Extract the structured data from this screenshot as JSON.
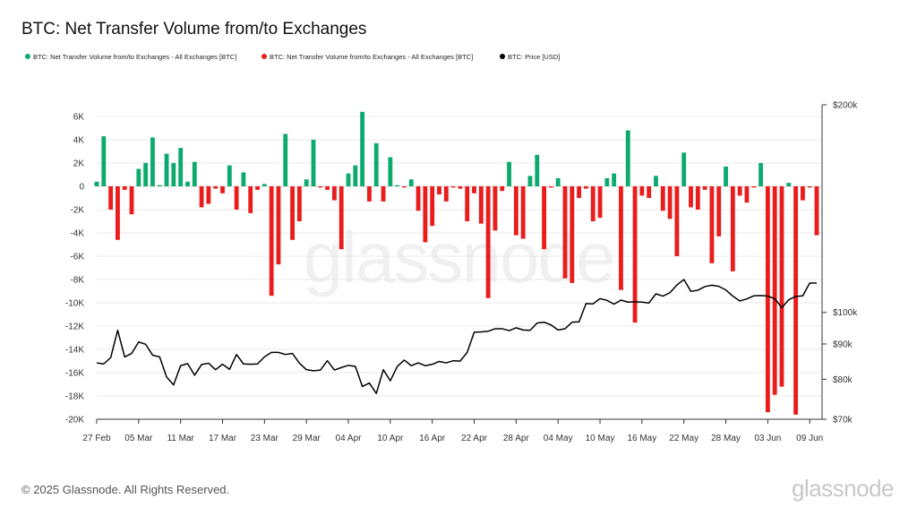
{
  "title": "BTC: Net Transfer Volume from/to Exchanges",
  "legend": [
    {
      "label": "BTC: Net Transfer Volume from/to Exchanges - All Exchanges [BTC]",
      "color": "#0daa6f"
    },
    {
      "label": "BTC: Net Transfer Volume from/to Exchanges - All Exchanges [BTC]",
      "color": "#ea1c1c"
    },
    {
      "label": "BTC: Price [USD]",
      "color": "#000000"
    }
  ],
  "watermark": "glassnode",
  "footer": {
    "copyright": "© 2025 Glassnode. All Rights Reserved.",
    "logo": "glassnode"
  },
  "chart_data": {
    "type": "bar",
    "left_axis": {
      "ticks": [
        6000,
        4000,
        2000,
        0,
        -2000,
        -4000,
        -6000,
        -8000,
        -10000,
        -12000,
        -14000,
        -16000,
        -18000,
        -20000
      ],
      "tick_labels": [
        "6K",
        "4K",
        "2K",
        "0",
        "-2K",
        "-4K",
        "-6K",
        "-8K",
        "-10K",
        "-12K",
        "-14K",
        "-16K",
        "-18K",
        "-20K"
      ],
      "range": [
        -20000,
        6000
      ]
    },
    "right_axis": {
      "ticks": [
        200000,
        100000,
        90000,
        80000,
        70000
      ],
      "tick_labels": [
        "$200k",
        "$100k",
        "$90k",
        "$80k",
        "$70k"
      ],
      "range": [
        70000,
        200000
      ],
      "scale": "log"
    },
    "x_axis": {
      "start": "2025-02-27",
      "end": "2025-06-10",
      "tick_dates": [
        "2025-02-27",
        "2025-03-05",
        "2025-03-11",
        "2025-03-17",
        "2025-03-23",
        "2025-03-29",
        "2025-04-04",
        "2025-04-10",
        "2025-04-16",
        "2025-04-22",
        "2025-04-28",
        "2025-05-04",
        "2025-05-10",
        "2025-05-16",
        "2025-05-22",
        "2025-05-28",
        "2025-06-03",
        "2025-06-09"
      ],
      "tick_labels": [
        "27 Feb",
        "05 Mar",
        "11 Mar",
        "17 Mar",
        "23 Mar",
        "29 Mar",
        "04 Apr",
        "10 Apr",
        "16 Apr",
        "22 Apr",
        "28 Apr",
        "04 May",
        "10 May",
        "16 May",
        "22 May",
        "28 May",
        "03 Jun",
        "09 Jun"
      ]
    },
    "grid": "horizontal",
    "series": [
      {
        "type": "bar",
        "positive_color": "#0daa6f",
        "negative_color": "#ea1c1c",
        "x": [
          "2025-02-27",
          "2025-02-28",
          "2025-03-01",
          "2025-03-02",
          "2025-03-03",
          "2025-03-04",
          "2025-03-05",
          "2025-03-06",
          "2025-03-07",
          "2025-03-08",
          "2025-03-09",
          "2025-03-10",
          "2025-03-11",
          "2025-03-12",
          "2025-03-13",
          "2025-03-14",
          "2025-03-15",
          "2025-03-16",
          "2025-03-17",
          "2025-03-18",
          "2025-03-19",
          "2025-03-20",
          "2025-03-21",
          "2025-03-22",
          "2025-03-23",
          "2025-03-24",
          "2025-03-25",
          "2025-03-26",
          "2025-03-27",
          "2025-03-28",
          "2025-03-29",
          "2025-03-30",
          "2025-03-31",
          "2025-04-01",
          "2025-04-02",
          "2025-04-03",
          "2025-04-04",
          "2025-04-05",
          "2025-04-06",
          "2025-04-07",
          "2025-04-08",
          "2025-04-09",
          "2025-04-10",
          "2025-04-11",
          "2025-04-12",
          "2025-04-13",
          "2025-04-14",
          "2025-04-15",
          "2025-04-16",
          "2025-04-17",
          "2025-04-18",
          "2025-04-19",
          "2025-04-20",
          "2025-04-21",
          "2025-04-22",
          "2025-04-23",
          "2025-04-24",
          "2025-04-25",
          "2025-04-26",
          "2025-04-27",
          "2025-04-28",
          "2025-04-29",
          "2025-04-30",
          "2025-05-01",
          "2025-05-02",
          "2025-05-03",
          "2025-05-04",
          "2025-05-05",
          "2025-05-06",
          "2025-05-07",
          "2025-05-08",
          "2025-05-09",
          "2025-05-10",
          "2025-05-11",
          "2025-05-12",
          "2025-05-13",
          "2025-05-14",
          "2025-05-15",
          "2025-05-16",
          "2025-05-17",
          "2025-05-18",
          "2025-05-19",
          "2025-05-20",
          "2025-05-21",
          "2025-05-22",
          "2025-05-23",
          "2025-05-24",
          "2025-05-25",
          "2025-05-26",
          "2025-05-27",
          "2025-05-28",
          "2025-05-29",
          "2025-05-30",
          "2025-05-31",
          "2025-06-01",
          "2025-06-02",
          "2025-06-03",
          "2025-06-04",
          "2025-06-05",
          "2025-06-06",
          "2025-06-07",
          "2025-06-08",
          "2025-06-09",
          "2025-06-10"
        ],
        "values": [
          400,
          4300,
          -2000,
          -4600,
          -300,
          -2400,
          1500,
          2000,
          4200,
          100,
          2800,
          2000,
          3300,
          400,
          2100,
          -1800,
          -1500,
          -200,
          -600,
          1800,
          -2000,
          1200,
          -2300,
          -300,
          200,
          -9400,
          -6700,
          4500,
          -4600,
          -3000,
          600,
          4000,
          -100,
          -300,
          -1200,
          -5400,
          1100,
          1800,
          6400,
          -1300,
          3700,
          -1300,
          2500,
          100,
          -100,
          600,
          -2100,
          -4800,
          -3400,
          -700,
          -1300,
          -100,
          -200,
          -3000,
          -600,
          -3200,
          -9600,
          -3800,
          -400,
          2100,
          -4200,
          -4500,
          900,
          2700,
          -5400,
          -100,
          700,
          -7900,
          -8300,
          -1000,
          -200,
          -3000,
          -2700,
          700,
          1100,
          -8900,
          4800,
          -11700,
          -800,
          -1000,
          900,
          -2100,
          -2800,
          -6000,
          2900,
          -1800,
          -2000,
          -300,
          -6600,
          -4300,
          1700,
          -7300,
          -800,
          -1400,
          -100,
          2000,
          -19400,
          -17900,
          -17200,
          300,
          -19600,
          -1200,
          -100,
          -4200
        ]
      },
      {
        "type": "line",
        "name": "BTC: Price [USD]",
        "color": "#000000",
        "x": [
          "2025-02-27",
          "2025-02-28",
          "2025-03-01",
          "2025-03-02",
          "2025-03-03",
          "2025-03-04",
          "2025-03-05",
          "2025-03-06",
          "2025-03-07",
          "2025-03-08",
          "2025-03-09",
          "2025-03-10",
          "2025-03-11",
          "2025-03-12",
          "2025-03-13",
          "2025-03-14",
          "2025-03-15",
          "2025-03-16",
          "2025-03-17",
          "2025-03-18",
          "2025-03-19",
          "2025-03-20",
          "2025-03-21",
          "2025-03-22",
          "2025-03-23",
          "2025-03-24",
          "2025-03-25",
          "2025-03-26",
          "2025-03-27",
          "2025-03-28",
          "2025-03-29",
          "2025-03-30",
          "2025-03-31",
          "2025-04-01",
          "2025-04-02",
          "2025-04-03",
          "2025-04-04",
          "2025-04-05",
          "2025-04-06",
          "2025-04-07",
          "2025-04-08",
          "2025-04-09",
          "2025-04-10",
          "2025-04-11",
          "2025-04-12",
          "2025-04-13",
          "2025-04-14",
          "2025-04-15",
          "2025-04-16",
          "2025-04-17",
          "2025-04-18",
          "2025-04-19",
          "2025-04-20",
          "2025-04-21",
          "2025-04-22",
          "2025-04-23",
          "2025-04-24",
          "2025-04-25",
          "2025-04-26",
          "2025-04-27",
          "2025-04-28",
          "2025-04-29",
          "2025-04-30",
          "2025-05-01",
          "2025-05-02",
          "2025-05-03",
          "2025-05-04",
          "2025-05-05",
          "2025-05-06",
          "2025-05-07",
          "2025-05-08",
          "2025-05-09",
          "2025-05-10",
          "2025-05-11",
          "2025-05-12",
          "2025-05-13",
          "2025-05-14",
          "2025-05-15",
          "2025-05-16",
          "2025-05-17",
          "2025-05-18",
          "2025-05-19",
          "2025-05-20",
          "2025-05-21",
          "2025-05-22",
          "2025-05-23",
          "2025-05-24",
          "2025-05-25",
          "2025-05-26",
          "2025-05-27",
          "2025-05-28",
          "2025-05-29",
          "2025-05-30",
          "2025-05-31",
          "2025-06-01",
          "2025-06-02",
          "2025-06-03",
          "2025-06-04",
          "2025-06-05",
          "2025-06-06",
          "2025-06-07",
          "2025-06-08",
          "2025-06-09",
          "2025-06-10"
        ],
        "values": [
          84500,
          84200,
          86000,
          94200,
          86200,
          87200,
          90600,
          89900,
          86700,
          86200,
          80600,
          78500,
          83700,
          84300,
          81100,
          84000,
          84400,
          82600,
          84100,
          82700,
          86900,
          84200,
          84100,
          84200,
          86200,
          87500,
          87500,
          86900,
          87200,
          84400,
          82600,
          82300,
          82500,
          85100,
          82500,
          83200,
          83800,
          83500,
          78100,
          79000,
          76300,
          82600,
          79600,
          83500,
          85300,
          83700,
          84500,
          83700,
          84100,
          84900,
          84500,
          85100,
          85000,
          87500,
          93600,
          93700,
          93900,
          94700,
          94700,
          94100,
          95000,
          94300,
          94200,
          96500,
          96800,
          95900,
          94300,
          94700,
          96800,
          96900,
          103000,
          102900,
          104700,
          104100,
          102800,
          104200,
          103500,
          103600,
          103500,
          103200,
          106400,
          105600,
          106800,
          109600,
          111600,
          107300,
          107700,
          109000,
          109500,
          109100,
          107800,
          105600,
          103900,
          104600,
          105700,
          105800,
          105600,
          104700,
          101600,
          104300,
          105500,
          105700,
          110300,
          110300
        ]
      }
    ]
  }
}
